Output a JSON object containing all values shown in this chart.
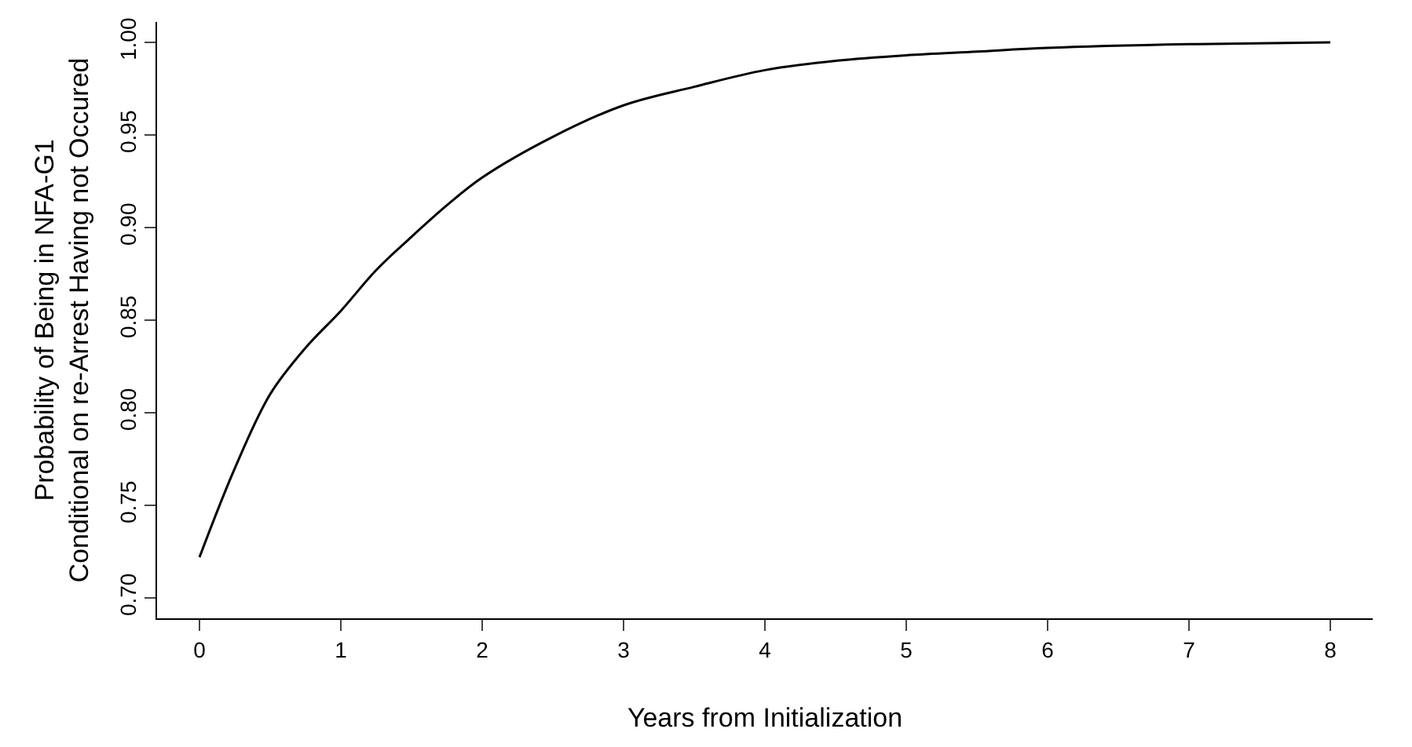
{
  "chart_data": {
    "type": "line",
    "xlabel": "Years from Initialization",
    "ylabel": "Probability of Being in NFA-G1\nConditional on re-Arrest Having not Occured",
    "x": [
      0,
      0.25,
      0.5,
      0.75,
      1,
      1.25,
      1.5,
      1.75,
      2,
      2.5,
      3,
      3.5,
      4,
      4.5,
      5,
      5.5,
      6,
      7,
      8
    ],
    "series": [
      {
        "color": "#000000",
        "values": [
          0.722,
          0.77,
          0.81,
          0.835,
          0.855,
          0.877,
          0.895,
          0.912,
          0.927,
          0.949,
          0.966,
          0.976,
          0.985,
          0.99,
          0.993,
          0.995,
          0.997,
          0.999,
          1.0
        ]
      }
    ],
    "xlim": [
      -0.3,
      8.3
    ],
    "ylim": [
      0.689,
      1.011
    ],
    "xticks": [
      0,
      1,
      2,
      3,
      4,
      5,
      6,
      7,
      8
    ],
    "yticks": [
      {
        "value": 0.7,
        "label": "0.70"
      },
      {
        "value": 0.75,
        "label": "0.75"
      },
      {
        "value": 0.8,
        "label": "0.80"
      },
      {
        "value": 0.85,
        "label": "0.85"
      },
      {
        "value": 0.9,
        "label": "0.90"
      },
      {
        "value": 0.95,
        "label": "0.95"
      },
      {
        "value": 1.0,
        "label": "1.00"
      }
    ],
    "marker": "none",
    "line_style": "solid"
  }
}
